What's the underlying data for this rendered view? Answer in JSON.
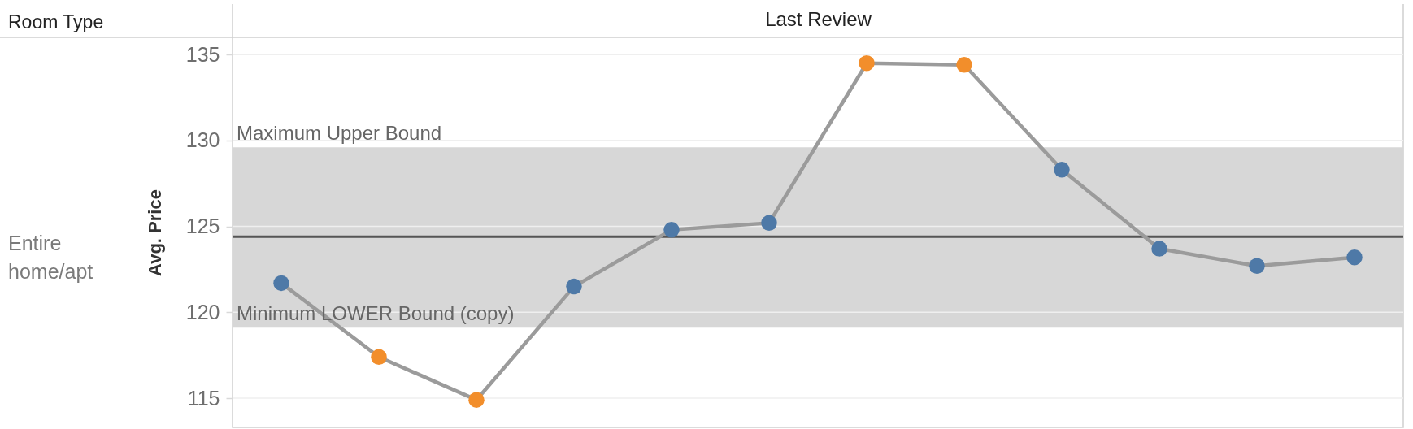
{
  "chart_data": {
    "type": "line",
    "xlabel": "Last Review",
    "ylabel": "Avg. Price",
    "categories": [
      null,
      null,
      null,
      null,
      null,
      null,
      null,
      null,
      null,
      null,
      null,
      null
    ],
    "values": [
      121.7,
      117.4,
      114.9,
      121.5,
      124.8,
      125.2,
      134.5,
      134.4,
      128.3,
      123.7,
      122.7,
      123.2
    ],
    "color": "#9b9b9b",
    "colors": [
      "#4e79a7",
      "#f28e2b",
      "#f28e2b",
      "#4e79a7",
      "#4e79a7",
      "#4e79a7",
      "#f28e2b",
      "#f28e2b",
      "#4e79a7",
      "#4e79a7",
      "#4e79a7",
      "#4e79a7"
    ],
    "marker": "circle",
    "ylim": [
      113.3,
      136
    ],
    "yticks": [
      115,
      120,
      125,
      130,
      135
    ],
    "grid": "y",
    "tick_labels": "y",
    "ref_lines": [
      {
        "axis": "y",
        "value": 124.4,
        "color": "#555555"
      }
    ],
    "bands": [
      {
        "axis": "y",
        "from": 119.1,
        "to": 129.6,
        "color": "#d7d7d7"
      }
    ],
    "annotations": [
      "Room Type",
      "Entire home/apt",
      {
        "text": "Maximum Upper Bound",
        "y": 129.6
      },
      {
        "text": "Minimum LOWER Bound (copy)",
        "y": 119.1
      }
    ]
  }
}
